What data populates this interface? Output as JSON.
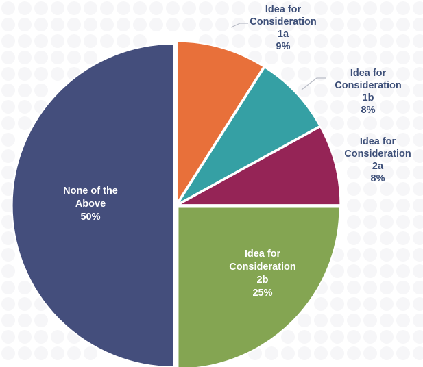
{
  "chart_data": {
    "type": "pie",
    "title": "",
    "slices": [
      {
        "label_lines": [
          "Idea for",
          "Consideration",
          "1a"
        ],
        "value": 9,
        "pct_label": "9%",
        "color": "#E8703A",
        "label_color": "#3D4F78"
      },
      {
        "label_lines": [
          "Idea for",
          "Consideration",
          "1b"
        ],
        "value": 8,
        "pct_label": "8%",
        "color": "#35A0A4",
        "label_color": "#3D4F78"
      },
      {
        "label_lines": [
          "Idea for",
          "Consideration",
          "2a"
        ],
        "value": 8,
        "pct_label": "8%",
        "color": "#952456",
        "label_color": "#3D4F78"
      },
      {
        "label_lines": [
          "Idea for",
          "Consideration",
          "2b"
        ],
        "value": 25,
        "pct_label": "25%",
        "color": "#84A552",
        "label_color": "#FFFFFF"
      },
      {
        "label_lines": [
          "None of the",
          "Above"
        ],
        "value": 50,
        "pct_label": "50%",
        "color": "#444E7C",
        "label_color": "#FFFFFF"
      }
    ],
    "start_angle": "12 o'clock",
    "direction": "clockwise",
    "legend": "none",
    "background_pattern": "light-gray-dots"
  }
}
